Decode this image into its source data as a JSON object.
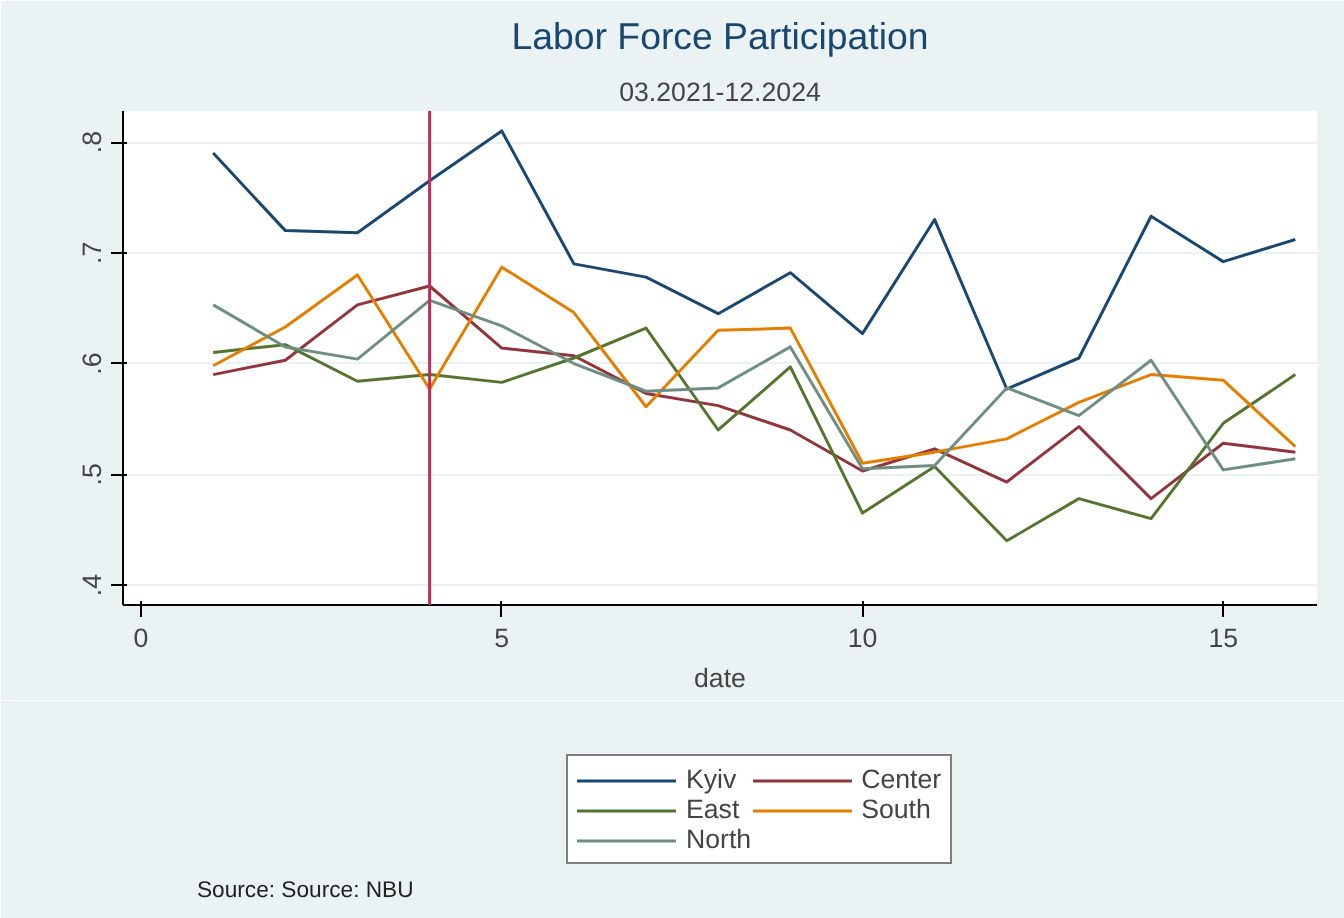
{
  "chart_data": {
    "type": "line",
    "title": "Labor Force Participation",
    "subtitle": "03.2021-12.2024",
    "xlabel": "date",
    "x": [
      1,
      2,
      3,
      4,
      5,
      6,
      7,
      8,
      9,
      10,
      11,
      12,
      13,
      14,
      15,
      16
    ],
    "series": [
      {
        "name": "Kyiv",
        "color": "#1a476f",
        "values": [
          0.79,
          0.72,
          0.718,
          0.765,
          0.81,
          0.69,
          0.678,
          0.645,
          0.682,
          0.627,
          0.73,
          0.577,
          0.605,
          0.733,
          0.692,
          0.712
        ]
      },
      {
        "name": "Center",
        "color": "#90353b",
        "values": [
          0.59,
          0.603,
          0.653,
          0.67,
          0.614,
          0.607,
          0.573,
          0.562,
          0.54,
          0.503,
          0.523,
          0.493,
          0.543,
          0.478,
          0.528,
          0.52
        ]
      },
      {
        "name": "East",
        "color": "#55752f",
        "values": [
          0.61,
          0.617,
          0.584,
          0.59,
          0.583,
          0.605,
          0.632,
          0.54,
          0.597,
          0.465,
          0.507,
          0.44,
          0.478,
          0.46,
          0.546,
          0.59
        ]
      },
      {
        "name": "South",
        "color": "#e37e00",
        "values": [
          0.598,
          0.633,
          0.68,
          0.577,
          0.687,
          0.646,
          0.561,
          0.63,
          0.632,
          0.51,
          0.52,
          0.532,
          0.565,
          0.59,
          0.585,
          0.525
        ]
      },
      {
        "name": "North",
        "color": "#6e8e84",
        "values": [
          0.653,
          0.615,
          0.604,
          0.657,
          0.634,
          0.6,
          0.575,
          0.578,
          0.615,
          0.505,
          0.508,
          0.578,
          0.553,
          0.603,
          0.504,
          0.514
        ]
      }
    ],
    "xlim": [
      -0.25,
      16.3
    ],
    "ylim": [
      0.382,
      0.828
    ],
    "xticks": [
      0,
      5,
      10,
      15
    ],
    "yticks": [
      {
        "value": 0.4,
        "label": ".4"
      },
      {
        "value": 0.5,
        "label": ".5"
      },
      {
        "value": 0.6,
        "label": ".6"
      },
      {
        "value": 0.7,
        "label": ".7"
      },
      {
        "value": 0.8,
        "label": ".8"
      }
    ],
    "ref_lines": [
      {
        "axis": "x",
        "value": 4,
        "color": "#c8285a"
      }
    ],
    "grid": "y",
    "legend": "bottom",
    "marker": "none",
    "line_style": "solid",
    "annotations": [
      "Source: Source:  NBU"
    ]
  }
}
